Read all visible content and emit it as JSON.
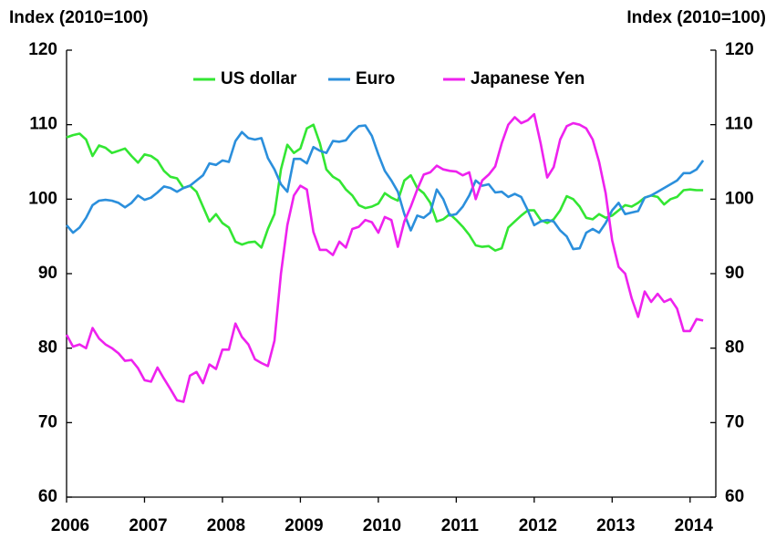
{
  "chart_data": {
    "type": "line",
    "ylabel": "Index (2010=100)",
    "y2label": "Index (2010=100)",
    "legend": "top",
    "xlim": [
      2006,
      2014.33
    ],
    "xticks": [
      2006,
      2007,
      2008,
      2009,
      2010,
      2011,
      2012,
      2013,
      2014
    ],
    "ylim": [
      60,
      120
    ],
    "yticks": [
      60,
      70,
      80,
      90,
      100,
      110,
      120
    ],
    "y2lim": [
      60,
      120
    ],
    "y2ticks": [
      60,
      70,
      80,
      90,
      100,
      110,
      120
    ],
    "grid": false,
    "x": [
      2006,
      2006.083,
      2006.167,
      2006.25,
      2006.333,
      2006.417,
      2006.5,
      2006.583,
      2006.667,
      2006.75,
      2006.833,
      2006.917,
      2007,
      2007.083,
      2007.167,
      2007.25,
      2007.333,
      2007.417,
      2007.5,
      2007.583,
      2007.667,
      2007.75,
      2007.833,
      2007.917,
      2008,
      2008.083,
      2008.167,
      2008.25,
      2008.333,
      2008.417,
      2008.5,
      2008.583,
      2008.667,
      2008.75,
      2008.833,
      2008.917,
      2009,
      2009.083,
      2009.167,
      2009.25,
      2009.333,
      2009.417,
      2009.5,
      2009.583,
      2009.667,
      2009.75,
      2009.833,
      2009.917,
      2010,
      2010.083,
      2010.167,
      2010.25,
      2010.333,
      2010.417,
      2010.5,
      2010.583,
      2010.667,
      2010.75,
      2010.833,
      2010.917,
      2011,
      2011.083,
      2011.167,
      2011.25,
      2011.333,
      2011.417,
      2011.5,
      2011.583,
      2011.667,
      2011.75,
      2011.833,
      2011.917,
      2012,
      2012.083,
      2012.167,
      2012.25,
      2012.333,
      2012.417,
      2012.5,
      2012.583,
      2012.667,
      2012.75,
      2012.833,
      2012.917,
      2013,
      2013.083,
      2013.167,
      2013.25,
      2013.333,
      2013.417,
      2013.5,
      2013.583,
      2013.667,
      2013.75,
      2013.833,
      2013.917,
      2014,
      2014.083,
      2014.167
    ],
    "series": [
      {
        "name": "US dollar",
        "color": "#33e633",
        "values": [
          108.3,
          108.6,
          108.8,
          108.0,
          105.8,
          107.2,
          106.9,
          106.2,
          106.5,
          106.8,
          105.8,
          104.9,
          106.0,
          105.8,
          105.2,
          103.8,
          103.0,
          102.8,
          101.5,
          101.8,
          101.0,
          99.0,
          97.0,
          98.0,
          96.8,
          96.2,
          94.3,
          93.9,
          94.2,
          94.3,
          93.5,
          96.0,
          98.0,
          104.0,
          107.3,
          106.2,
          106.8,
          109.5,
          110.0,
          107.5,
          104.0,
          103.0,
          102.5,
          101.3,
          100.5,
          99.2,
          98.8,
          99.0,
          99.4,
          100.8,
          100.2,
          99.8,
          102.5,
          103.2,
          101.5,
          100.8,
          99.5,
          97.0,
          97.3,
          98.0,
          97.2,
          96.3,
          95.2,
          93.8,
          93.6,
          93.7,
          93.1,
          93.4,
          96.2,
          97.0,
          97.8,
          98.5,
          98.5,
          97.2,
          96.8,
          97.3,
          98.5,
          100.4,
          100.0,
          99.0,
          97.5,
          97.3,
          98.0,
          97.5,
          97.8,
          98.5,
          99.2,
          99.0,
          99.5,
          100.2,
          100.5,
          100.3,
          99.3,
          100.0,
          100.3,
          101.2,
          101.3,
          101.2,
          101.2
        ]
      },
      {
        "name": "Euro",
        "color": "#2b8fdc",
        "values": [
          96.5,
          95.5,
          96.2,
          97.5,
          99.2,
          99.8,
          99.9,
          99.8,
          99.5,
          98.9,
          99.5,
          100.5,
          99.9,
          100.2,
          100.9,
          101.7,
          101.5,
          101.0,
          101.5,
          101.8,
          102.5,
          103.2,
          104.8,
          104.6,
          105.2,
          105.0,
          107.8,
          109.0,
          108.2,
          108.0,
          108.2,
          105.5,
          104.0,
          102.0,
          101.0,
          105.4,
          105.4,
          104.8,
          107.0,
          106.5,
          106.2,
          107.8,
          107.7,
          107.9,
          109.0,
          109.8,
          109.9,
          108.5,
          106.0,
          103.8,
          102.5,
          101.0,
          98.0,
          95.8,
          97.8,
          97.5,
          98.2,
          101.3,
          100.0,
          97.8,
          98.0,
          99.0,
          100.5,
          102.5,
          101.8,
          102.0,
          100.9,
          101.0,
          100.3,
          100.7,
          100.3,
          98.5,
          96.5,
          97.0,
          97.2,
          97.0,
          95.8,
          95.0,
          93.3,
          93.4,
          95.5,
          96.0,
          95.5,
          96.8,
          98.5,
          99.5,
          98.0,
          98.2,
          98.4,
          100.2,
          100.5,
          101.0,
          101.5,
          102.0,
          102.5,
          103.5,
          103.5,
          104.0,
          105.2
        ]
      },
      {
        "name": "Japanese Yen",
        "color": "#ee22ee",
        "values": [
          81.8,
          80.2,
          80.5,
          80.0,
          82.7,
          81.3,
          80.5,
          80.0,
          79.3,
          78.3,
          78.4,
          77.3,
          75.7,
          75.5,
          77.4,
          75.9,
          74.5,
          73.0,
          72.8,
          76.3,
          76.8,
          75.3,
          77.8,
          77.2,
          79.8,
          79.8,
          83.3,
          81.5,
          80.5,
          78.5,
          78.0,
          77.6,
          81.0,
          90.0,
          96.5,
          100.5,
          101.8,
          101.3,
          95.6,
          93.2,
          93.2,
          92.5,
          94.3,
          93.5,
          96.0,
          96.3,
          97.2,
          96.9,
          95.5,
          97.6,
          97.2,
          93.6,
          97.0,
          99.0,
          101.3,
          103.3,
          103.6,
          104.5,
          104.0,
          103.8,
          103.7,
          103.2,
          103.6,
          100.0,
          102.5,
          103.3,
          104.4,
          107.5,
          110.0,
          111.0,
          110.2,
          110.6,
          111.4,
          107.5,
          102.9,
          104.3,
          108.0,
          109.8,
          110.2,
          110.0,
          109.5,
          108.0,
          105.0,
          100.8,
          94.5,
          90.9,
          90.0,
          86.7,
          84.2,
          87.6,
          86.2,
          87.3,
          86.2,
          86.6,
          85.3,
          82.3,
          82.3,
          83.9,
          83.7
        ]
      }
    ]
  }
}
